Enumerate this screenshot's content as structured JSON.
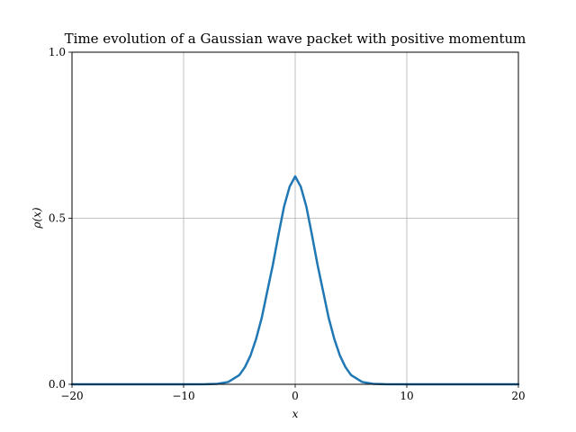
{
  "chart_data": {
    "type": "line",
    "title": "Time evolution of a Gaussian wave packet with positive momentum",
    "xlabel": "x",
    "ylabel": "ρ(x)",
    "xlim": [
      -20,
      20
    ],
    "ylim": [
      0,
      1
    ],
    "x_ticks": [
      -20,
      -10,
      0,
      10,
      20
    ],
    "x_tick_labels": [
      "−20",
      "−10",
      "0",
      "10",
      "20"
    ],
    "y_ticks": [
      0,
      0.5,
      1
    ],
    "y_tick_labels": [
      "0.0",
      "0.5",
      "1.0"
    ],
    "grid": true,
    "series": [
      {
        "color": "#1f77b4",
        "x": [
          -20,
          -10,
          -8,
          -7,
          -6,
          -5,
          -4.5,
          -4,
          -3.5,
          -3,
          -2.5,
          -2,
          -1.5,
          -1,
          -0.5,
          0,
          0.5,
          1,
          1.5,
          2,
          2.5,
          3,
          3.5,
          4,
          4.5,
          5,
          6,
          7,
          8,
          10,
          20
        ],
        "y": [
          0,
          0,
          0.0003,
          0.0013,
          0.0069,
          0.028,
          0.052,
          0.087,
          0.137,
          0.2,
          0.28,
          0.36,
          0.45,
          0.535,
          0.595,
          0.626,
          0.595,
          0.535,
          0.45,
          0.36,
          0.28,
          0.2,
          0.137,
          0.087,
          0.052,
          0.028,
          0.0069,
          0.0013,
          0.0003,
          0,
          0
        ]
      }
    ]
  }
}
